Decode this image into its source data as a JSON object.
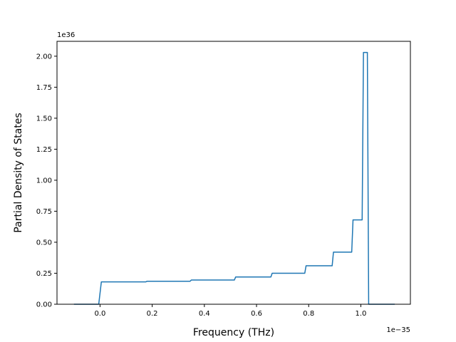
{
  "chart_data": {
    "type": "line",
    "title": "",
    "xlabel": "Frequency (THz)",
    "ylabel": "Partial Density of States",
    "x_offset_label": "1e−35",
    "y_offset_label": "1e36",
    "x_scale_note": "x values shown in units of 1e-35",
    "y_scale_note": "y values shown in units of 1e36",
    "xlim": [
      -0.165,
      1.19
    ],
    "ylim": [
      0,
      2.12
    ],
    "xticks": [
      0.0,
      0.2,
      0.4,
      0.6,
      0.8,
      1.0
    ],
    "xtick_labels": [
      "0.0",
      "0.2",
      "0.4",
      "0.6",
      "0.8",
      "1.0"
    ],
    "yticks": [
      0.0,
      0.25,
      0.5,
      0.75,
      1.0,
      1.25,
      1.5,
      1.75,
      2.0
    ],
    "ytick_labels": [
      "0.00",
      "0.25",
      "0.50",
      "0.75",
      "1.00",
      "1.25",
      "1.50",
      "1.75",
      "2.00"
    ],
    "grid": false,
    "legend": "none",
    "series": [
      {
        "color": "#1f77b4",
        "x": [
          -0.1,
          -0.005,
          0.005,
          0.175,
          0.18,
          0.345,
          0.35,
          0.515,
          0.52,
          0.655,
          0.66,
          0.785,
          0.79,
          0.89,
          0.895,
          0.965,
          0.97,
          1.005,
          1.01,
          1.025,
          1.03,
          1.13
        ],
        "y": [
          0,
          0,
          0.18,
          0.18,
          0.185,
          0.185,
          0.195,
          0.195,
          0.22,
          0.22,
          0.25,
          0.25,
          0.31,
          0.31,
          0.42,
          0.42,
          0.68,
          0.68,
          2.03,
          2.03,
          0,
          0
        ]
      }
    ]
  }
}
